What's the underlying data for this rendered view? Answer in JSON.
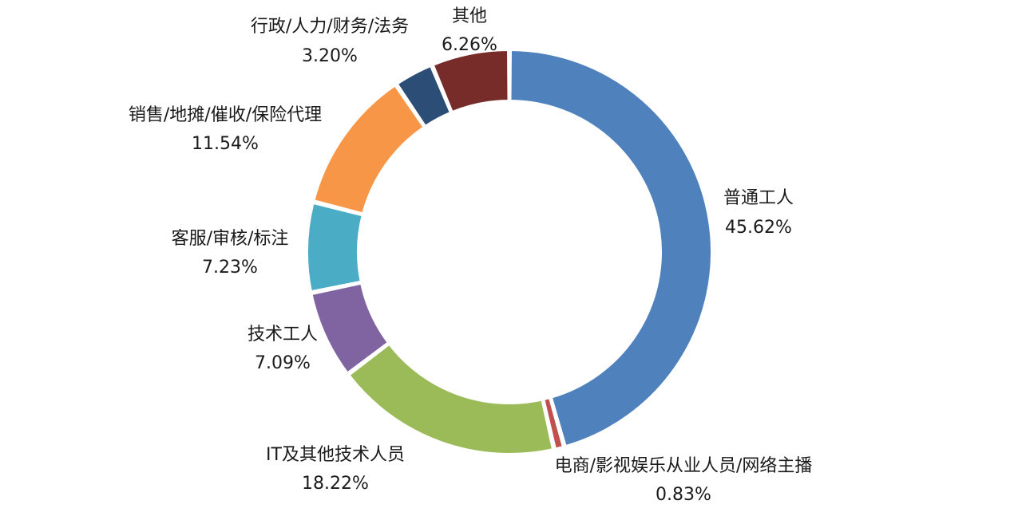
{
  "chart_data": {
    "type": "pie",
    "variant": "donut",
    "title": "",
    "legend": "none",
    "unit": "%",
    "start_angle_deg": 0,
    "direction": "clockwise",
    "slices": [
      {
        "name": "普通工人",
        "value": 45.62,
        "value_label": "45.62%",
        "color": "#4F81BD"
      },
      {
        "name": "电商/影视娱乐从业人员/网络主播",
        "value": 0.83,
        "value_label": "0.83%",
        "color": "#C0504D"
      },
      {
        "name": "IT及其他技术人员",
        "value": 18.22,
        "value_label": "18.22%",
        "color": "#9BBB59"
      },
      {
        "name": "技术工人",
        "value": 7.09,
        "value_label": "7.09%",
        "color": "#8064A2"
      },
      {
        "name": "客服/审核/标注",
        "value": 7.23,
        "value_label": "7.23%",
        "color": "#4BACC6"
      },
      {
        "name": "销售/地摊/催收/保险代理",
        "value": 11.54,
        "value_label": "11.54%",
        "color": "#F79646"
      },
      {
        "name": "行政/人力/财务/法务",
        "value": 3.2,
        "value_label": "3.20%",
        "color": "#2C4D75"
      },
      {
        "name": "其他",
        "value": 6.26,
        "value_label": "6.26%",
        "color": "#772C2A"
      }
    ]
  }
}
